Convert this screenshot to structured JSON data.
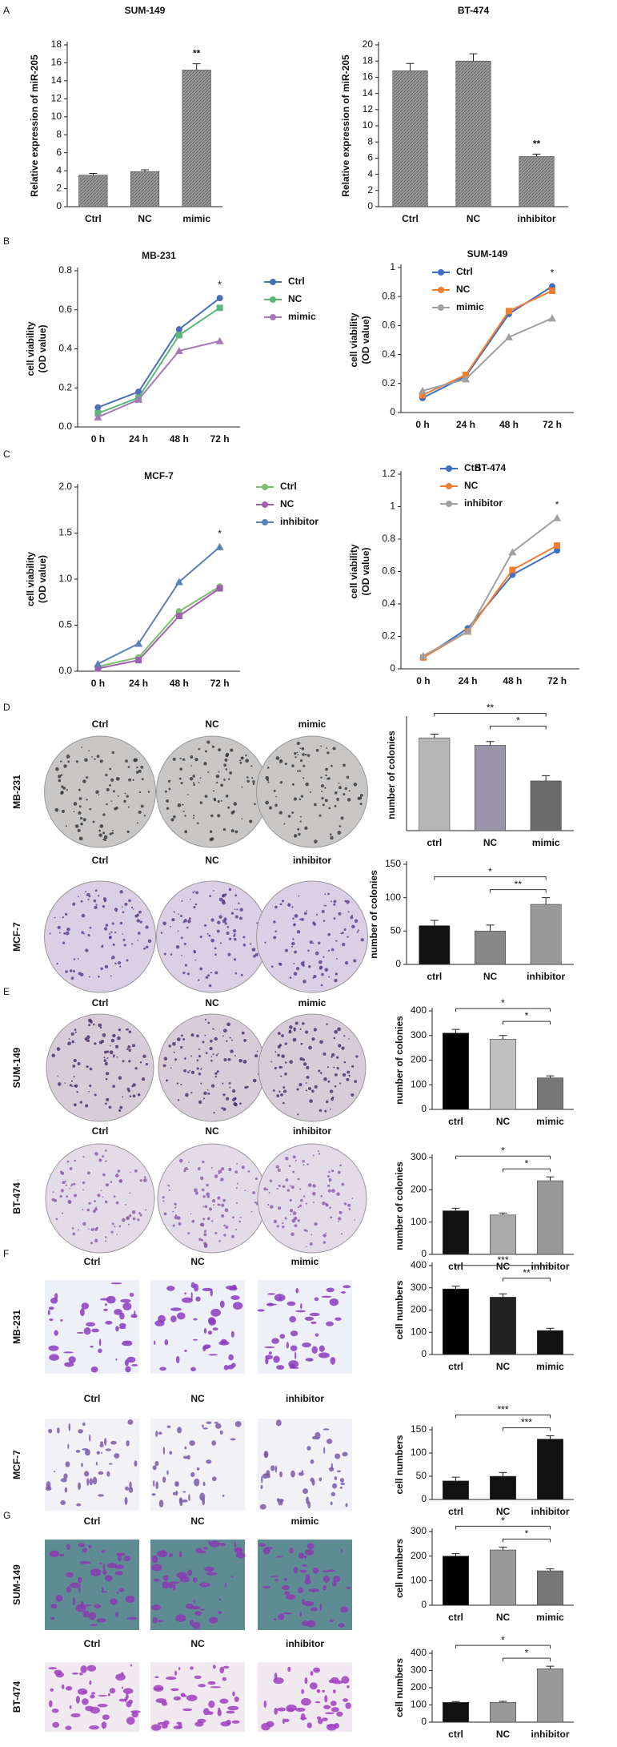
{
  "panels": [
    "A",
    "B",
    "C",
    "D",
    "E",
    "F",
    "G"
  ],
  "photo_rows": [
    {
      "row_label": "MB-231",
      "columns": [
        "Ctrl",
        "NC",
        "mimic"
      ]
    },
    {
      "row_label": "MCF-7",
      "columns": [
        "Ctrl",
        "NC",
        "inhibitor"
      ]
    },
    {
      "row_label": "SUM-149",
      "columns": [
        "Ctrl",
        "NC",
        "mimic"
      ]
    },
    {
      "row_label": "BT-474",
      "columns": [
        "Ctrl",
        "NC",
        "inhibitor"
      ]
    },
    {
      "row_label": "MB-231",
      "columns": [
        "Ctrl",
        "NC",
        "mimic"
      ]
    },
    {
      "row_label": "MCF-7",
      "columns": [
        "Ctrl",
        "NC",
        "inhibitor"
      ]
    },
    {
      "row_label": "SUM-149",
      "columns": [
        "Ctrl",
        "NC",
        "mimic"
      ]
    },
    {
      "row_label": "BT-474",
      "columns": [
        "Ctrl",
        "NC",
        "inhibitor"
      ]
    }
  ],
  "chart_data": [
    {
      "type": "bar",
      "title": "SUM-149",
      "ylabel": "Relative expression of miR-205",
      "categories": [
        "Ctrl",
        "NC",
        "mimic"
      ],
      "values": [
        3.5,
        3.9,
        15.2
      ],
      "errors": [
        0.2,
        0.2,
        0.7
      ],
      "color": "#8a8a8a",
      "ylim": [
        0,
        18
      ],
      "yticks": [
        0,
        2,
        4,
        6,
        8,
        10,
        12,
        14,
        16,
        18
      ],
      "annotations": [
        "**"
      ]
    },
    {
      "type": "bar",
      "title": "BT-474",
      "ylabel": "Relative expression of miR-205",
      "categories": [
        "Ctrl",
        "NC",
        "inhibitor"
      ],
      "values": [
        16.8,
        18.0,
        6.2
      ],
      "errors": [
        0.9,
        0.9,
        0.3
      ],
      "color": "#8a8a8a",
      "ylim": [
        0,
        20
      ],
      "yticks": [
        0,
        2,
        4,
        6,
        8,
        10,
        12,
        14,
        16,
        18,
        20
      ],
      "annotations": [
        "**"
      ]
    },
    {
      "type": "line",
      "title": "MB-231",
      "ylabel": [
        "cell viability",
        "(OD value)"
      ],
      "categories": [
        "0 h",
        "24 h",
        "48 h",
        "72 h"
      ],
      "series": [
        {
          "name": "Ctrl",
          "color": "#4a6fb5",
          "values": [
            0.1,
            0.18,
            0.5,
            0.66
          ]
        },
        {
          "name": "NC",
          "color": "#5cb87a",
          "values": [
            0.07,
            0.15,
            0.47,
            0.61
          ]
        },
        {
          "name": "mimic",
          "color": "#a67ab8",
          "values": [
            0.05,
            0.14,
            0.39,
            0.44
          ]
        }
      ],
      "ylim": [
        0,
        0.8
      ],
      "yticks": [
        {
          "value": 0,
          "label": "0.0"
        },
        0.2,
        0.4,
        0.6,
        0.8
      ],
      "annotations": [
        "*"
      ]
    },
    {
      "type": "line",
      "title": "SUM-149",
      "ylabel": [
        "cell viability",
        "(OD value)"
      ],
      "categories": [
        "0 h",
        "24 h",
        "48 h",
        "72 h"
      ],
      "series": [
        {
          "name": "Ctrl",
          "color": "#3f6fc4",
          "values": [
            0.1,
            0.25,
            0.68,
            0.87
          ]
        },
        {
          "name": "NC",
          "color": "#ef7d32",
          "values": [
            0.12,
            0.26,
            0.7,
            0.84
          ]
        },
        {
          "name": "mimic",
          "color": "#a0a0a0",
          "values": [
            0.15,
            0.23,
            0.52,
            0.65
          ]
        }
      ],
      "ylim": [
        0,
        1
      ],
      "yticks": [
        0,
        0.2,
        0.4,
        0.6,
        0.8,
        1
      ],
      "annotations": [
        "*"
      ]
    },
    {
      "type": "line",
      "title": "MCF-7",
      "ylabel": [
        "cell viability",
        "(OD value)"
      ],
      "categories": [
        "0 h",
        "24 h",
        "48 h",
        "72 h"
      ],
      "series": [
        {
          "name": "Ctrl",
          "color": "#7bbf6a",
          "values": [
            0.05,
            0.15,
            0.65,
            0.92
          ]
        },
        {
          "name": "NC",
          "color": "#a060b0",
          "values": [
            0.03,
            0.12,
            0.6,
            0.9
          ]
        },
        {
          "name": "inhibitor",
          "color": "#5a82b8",
          "values": [
            0.08,
            0.3,
            0.97,
            1.35
          ]
        }
      ],
      "ylim": [
        0,
        2
      ],
      "yticks": [
        {
          "value": 0,
          "label": "0.0"
        },
        0.5,
        {
          "value": 1,
          "label": "1.0"
        },
        1.5,
        {
          "value": 2,
          "label": "2.0"
        }
      ],
      "annotations": [
        "*"
      ]
    },
    {
      "type": "line",
      "title": "BT-474",
      "ylabel": [
        "cell viability",
        "(OD value)"
      ],
      "categories": [
        "0 h",
        "24 h",
        "48 h",
        "72 h"
      ],
      "series": [
        {
          "name": "Ctrl",
          "color": "#3f6fc4",
          "values": [
            0.07,
            0.25,
            0.58,
            0.73
          ]
        },
        {
          "name": "NC",
          "color": "#ef7d32",
          "values": [
            0.07,
            0.23,
            0.61,
            0.76
          ]
        },
        {
          "name": "inhibitor",
          "color": "#a0a0a0",
          "values": [
            0.08,
            0.23,
            0.72,
            0.93
          ]
        }
      ],
      "ylim": [
        0,
        1.2
      ],
      "yticks": [
        0,
        0.2,
        0.4,
        0.6,
        0.8,
        1,
        1.2
      ],
      "annotations": [
        "*"
      ]
    },
    {
      "type": "bar",
      "ylabel": "number of colonies",
      "categories": [
        "ctrl",
        "NC",
        "mimic"
      ],
      "values": [
        125,
        115,
        67
      ],
      "errors": [
        5,
        5,
        7
      ],
      "colors": [
        "#b5b5b5",
        "#9a95a8",
        "#6b6b6b"
      ],
      "ylim": [
        0,
        150
      ],
      "annotations": [
        "**",
        "*"
      ]
    },
    {
      "type": "bar",
      "ylabel": "number of colonies",
      "categories": [
        "ctrl",
        "NC",
        "inhibitor"
      ],
      "values": [
        58,
        50,
        90
      ],
      "errors": [
        8,
        9,
        10
      ],
      "colors": [
        "#111111",
        "#888888",
        "#999999"
      ],
      "ylim": [
        0,
        150
      ],
      "yticks": [
        0,
        50,
        100,
        150
      ],
      "annotations": [
        "*",
        "**"
      ]
    },
    {
      "type": "bar",
      "ylabel": "number of colonies",
      "categories": [
        "ctrl",
        "NC",
        "mimic"
      ],
      "values": [
        310,
        285,
        128
      ],
      "errors": [
        15,
        15,
        8
      ],
      "colors": [
        "#000000",
        "#c0c0c0",
        "#777777"
      ],
      "ylim": [
        0,
        400
      ],
      "yticks": [
        0,
        100,
        200,
        300,
        400
      ],
      "annotations": [
        "*",
        "*"
      ]
    },
    {
      "type": "bar",
      "ylabel": "number of colonies",
      "categories": [
        "ctrl",
        "NC",
        "inhibitor"
      ],
      "values": [
        135,
        122,
        228
      ],
      "errors": [
        8,
        6,
        12
      ],
      "colors": [
        "#111111",
        "#aaaaaa",
        "#999999"
      ],
      "ylim": [
        0,
        300
      ],
      "yticks": [
        0,
        100,
        200,
        300
      ],
      "annotations": [
        "*",
        "*"
      ]
    },
    {
      "type": "bar",
      "ylabel": "cell numbers",
      "categories": [
        "ctrl",
        "NC",
        "mimic"
      ],
      "values": [
        295,
        258,
        108
      ],
      "errors": [
        12,
        15,
        10
      ],
      "colors": [
        "#000000",
        "#222222",
        "#111111"
      ],
      "ylim": [
        0,
        400
      ],
      "yticks": [
        0,
        100,
        200,
        300,
        400
      ],
      "annotations": [
        "***",
        "**"
      ]
    },
    {
      "type": "bar",
      "ylabel": "cell numbers",
      "categories": [
        "ctrl",
        "NC",
        "inhibitor"
      ],
      "values": [
        40,
        50,
        130
      ],
      "errors": [
        8,
        8,
        7
      ],
      "colors": [
        "#111111",
        "#111111",
        "#111111"
      ],
      "ylim": [
        0,
        150
      ],
      "yticks": [
        0,
        50,
        100,
        150
      ],
      "annotations": [
        "***",
        "***"
      ]
    },
    {
      "type": "bar",
      "ylabel": "cell numbers",
      "categories": [
        "ctrl",
        "NC",
        "mimic"
      ],
      "values": [
        200,
        225,
        140
      ],
      "errors": [
        10,
        12,
        8
      ],
      "colors": [
        "#000000",
        "#999999",
        "#777777"
      ],
      "ylim": [
        0,
        300
      ],
      "yticks": [
        0,
        100,
        200,
        300
      ],
      "annotations": [
        "*",
        "*"
      ]
    },
    {
      "type": "bar",
      "ylabel": "cell numbers",
      "categories": [
        "ctrl",
        "NC",
        "inhibitor"
      ],
      "values": [
        115,
        115,
        310
      ],
      "errors": [
        5,
        6,
        15
      ],
      "colors": [
        "#111111",
        "#999999",
        "#999999"
      ],
      "ylim": [
        0,
        400
      ],
      "yticks": [
        0,
        100,
        200,
        300,
        400
      ],
      "annotations": [
        "*",
        "*"
      ]
    }
  ]
}
